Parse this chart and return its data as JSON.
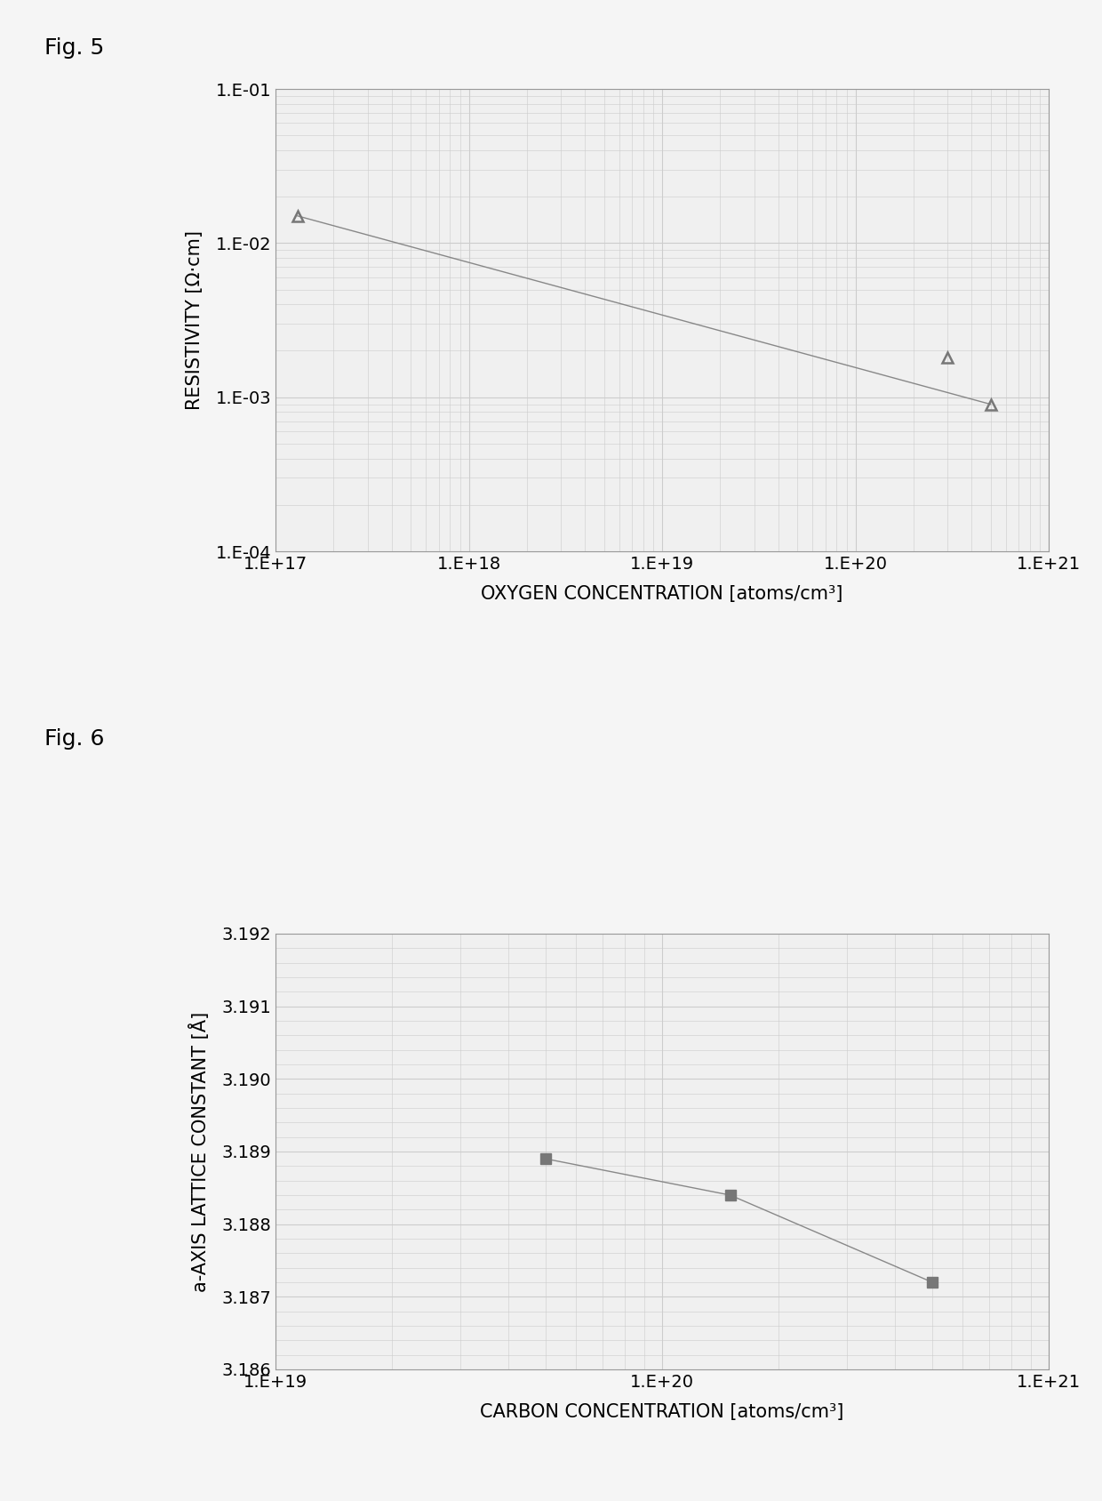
{
  "fig5": {
    "title": "Fig. 5",
    "x": [
      1.3e+17,
      3e+20,
      5e+20
    ],
    "y": [
      0.015,
      0.0018,
      0.0009
    ],
    "xlabel": "OXYGEN CONCENTRATION [atoms/cm³]",
    "ylabel": "RESISTIVITY [Ω·cm]",
    "xlim": [
      1e+17,
      1e+21
    ],
    "ylim": [
      0.0001,
      0.1
    ],
    "xticks": [
      1e+17,
      1e+18,
      1e+19,
      1e+20,
      1e+21
    ],
    "xtick_labels": [
      "1.E+17",
      "1.E+18",
      "1.E+19",
      "1.E+20",
      "1.E+21"
    ],
    "yticks": [
      0.0001,
      0.001,
      0.01,
      0.1
    ],
    "ytick_labels": [
      "1.E-04",
      "1.E-03",
      "1.E-02",
      "1.E-01"
    ],
    "line_color": "#888888",
    "marker": "^",
    "marker_color": "#777777",
    "marker_size": 9
  },
  "fig6": {
    "title": "Fig. 6",
    "x": [
      5e+19,
      1.5e+20,
      5e+20
    ],
    "y": [
      3.1889,
      3.1884,
      3.1872
    ],
    "xlabel": "CARBON CONCENTRATION [atoms/cm³]",
    "ylabel": "a-AXIS LATTICE CONSTANT [Å]",
    "xlim": [
      1e+19,
      1e+21
    ],
    "ylim": [
      3.186,
      3.192
    ],
    "xticks": [
      1e+19,
      1e+20,
      1e+21
    ],
    "xtick_labels": [
      "1.E+19",
      "1.E+20",
      "1.E+21"
    ],
    "yticks": [
      3.186,
      3.187,
      3.188,
      3.189,
      3.19,
      3.191,
      3.192
    ],
    "ytick_labels": [
      "3.186",
      "3.187",
      "3.188",
      "3.189",
      "3.190",
      "3.191",
      "3.192"
    ],
    "line_color": "#888888",
    "marker": "s",
    "marker_color": "#777777",
    "marker_size": 8
  },
  "bg_color": "#f5f5f5",
  "plot_bg_color": "#f0f0f0",
  "grid_color": "#cccccc",
  "text_color": "#000000",
  "label_fontsize": 15,
  "tick_fontsize": 14,
  "title_fontsize": 18
}
